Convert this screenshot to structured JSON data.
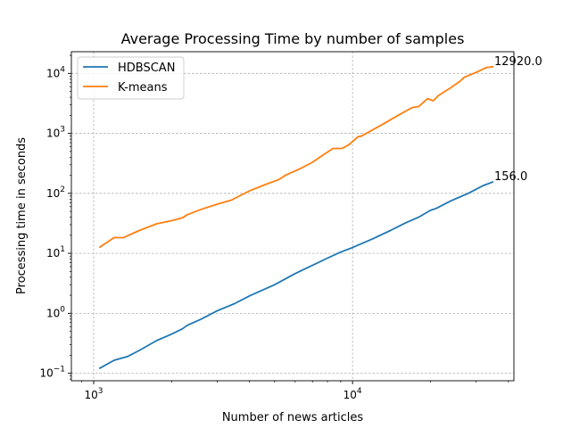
{
  "chart_data": {
    "type": "line",
    "title": "Average Processing Time by number of samples",
    "xlabel": "Number of news articles",
    "ylabel": "Processing time in seconds",
    "xscale": "log",
    "yscale": "log",
    "xlim": [
      820,
      42000
    ],
    "ylim": [
      0.075,
      23000
    ],
    "grid": true,
    "legend_position": "top-left",
    "x_ticks": [
      {
        "value": 1000,
        "base": "10",
        "exp": "3"
      },
      {
        "value": 10000,
        "base": "10",
        "exp": "4"
      }
    ],
    "y_ticks": [
      {
        "value": 0.1,
        "base": "10",
        "exp": "−1"
      },
      {
        "value": 1,
        "base": "10",
        "exp": "0"
      },
      {
        "value": 10,
        "base": "10",
        "exp": "1"
      },
      {
        "value": 100,
        "base": "10",
        "exp": "2"
      },
      {
        "value": 1000,
        "base": "10",
        "exp": "3"
      },
      {
        "value": 10000,
        "base": "10",
        "exp": "4"
      }
    ],
    "series": [
      {
        "name": "HDBSCAN",
        "color": "#1f77b4",
        "end_label": "156.0",
        "points": [
          [
            1050,
            0.12
          ],
          [
            1200,
            0.165
          ],
          [
            1350,
            0.19
          ],
          [
            1500,
            0.24
          ],
          [
            1750,
            0.35
          ],
          [
            2000,
            0.45
          ],
          [
            2200,
            0.55
          ],
          [
            2300,
            0.63
          ],
          [
            2600,
            0.8
          ],
          [
            3000,
            1.1
          ],
          [
            3500,
            1.45
          ],
          [
            4000,
            1.95
          ],
          [
            5000,
            3.0
          ],
          [
            6000,
            4.6
          ],
          [
            7000,
            6.3
          ],
          [
            8000,
            8.3
          ],
          [
            9000,
            10.5
          ],
          [
            10000,
            12.5
          ],
          [
            12000,
            17.5
          ],
          [
            14000,
            24
          ],
          [
            16000,
            32
          ],
          [
            18000,
            40
          ],
          [
            20000,
            52
          ],
          [
            21000,
            56
          ],
          [
            24000,
            75
          ],
          [
            28000,
            100
          ],
          [
            32000,
            135
          ],
          [
            35000,
            156
          ]
        ]
      },
      {
        "name": "K-means",
        "color": "#ff7f0e",
        "end_label": "12920.0",
        "points": [
          [
            1050,
            12.5
          ],
          [
            1200,
            18.3
          ],
          [
            1300,
            18.2
          ],
          [
            1500,
            24
          ],
          [
            1750,
            31
          ],
          [
            2000,
            35
          ],
          [
            2200,
            39
          ],
          [
            2300,
            44
          ],
          [
            2600,
            54
          ],
          [
            3000,
            66
          ],
          [
            3400,
            77
          ],
          [
            3700,
            93
          ],
          [
            4000,
            110
          ],
          [
            4600,
            140
          ],
          [
            5200,
            170
          ],
          [
            5500,
            200
          ],
          [
            6300,
            260
          ],
          [
            7000,
            330
          ],
          [
            7600,
            420
          ],
          [
            8400,
            560
          ],
          [
            9100,
            560
          ],
          [
            9700,
            650
          ],
          [
            10500,
            880
          ],
          [
            10800,
            900
          ],
          [
            13000,
            1400
          ],
          [
            15000,
            2000
          ],
          [
            17000,
            2700
          ],
          [
            18000,
            2800
          ],
          [
            19500,
            3800
          ],
          [
            20500,
            3500
          ],
          [
            21500,
            4300
          ],
          [
            24000,
            5800
          ],
          [
            26000,
            7400
          ],
          [
            27000,
            8600
          ],
          [
            30000,
            10400
          ],
          [
            33000,
            12600
          ],
          [
            35000,
            12920
          ]
        ]
      }
    ]
  }
}
